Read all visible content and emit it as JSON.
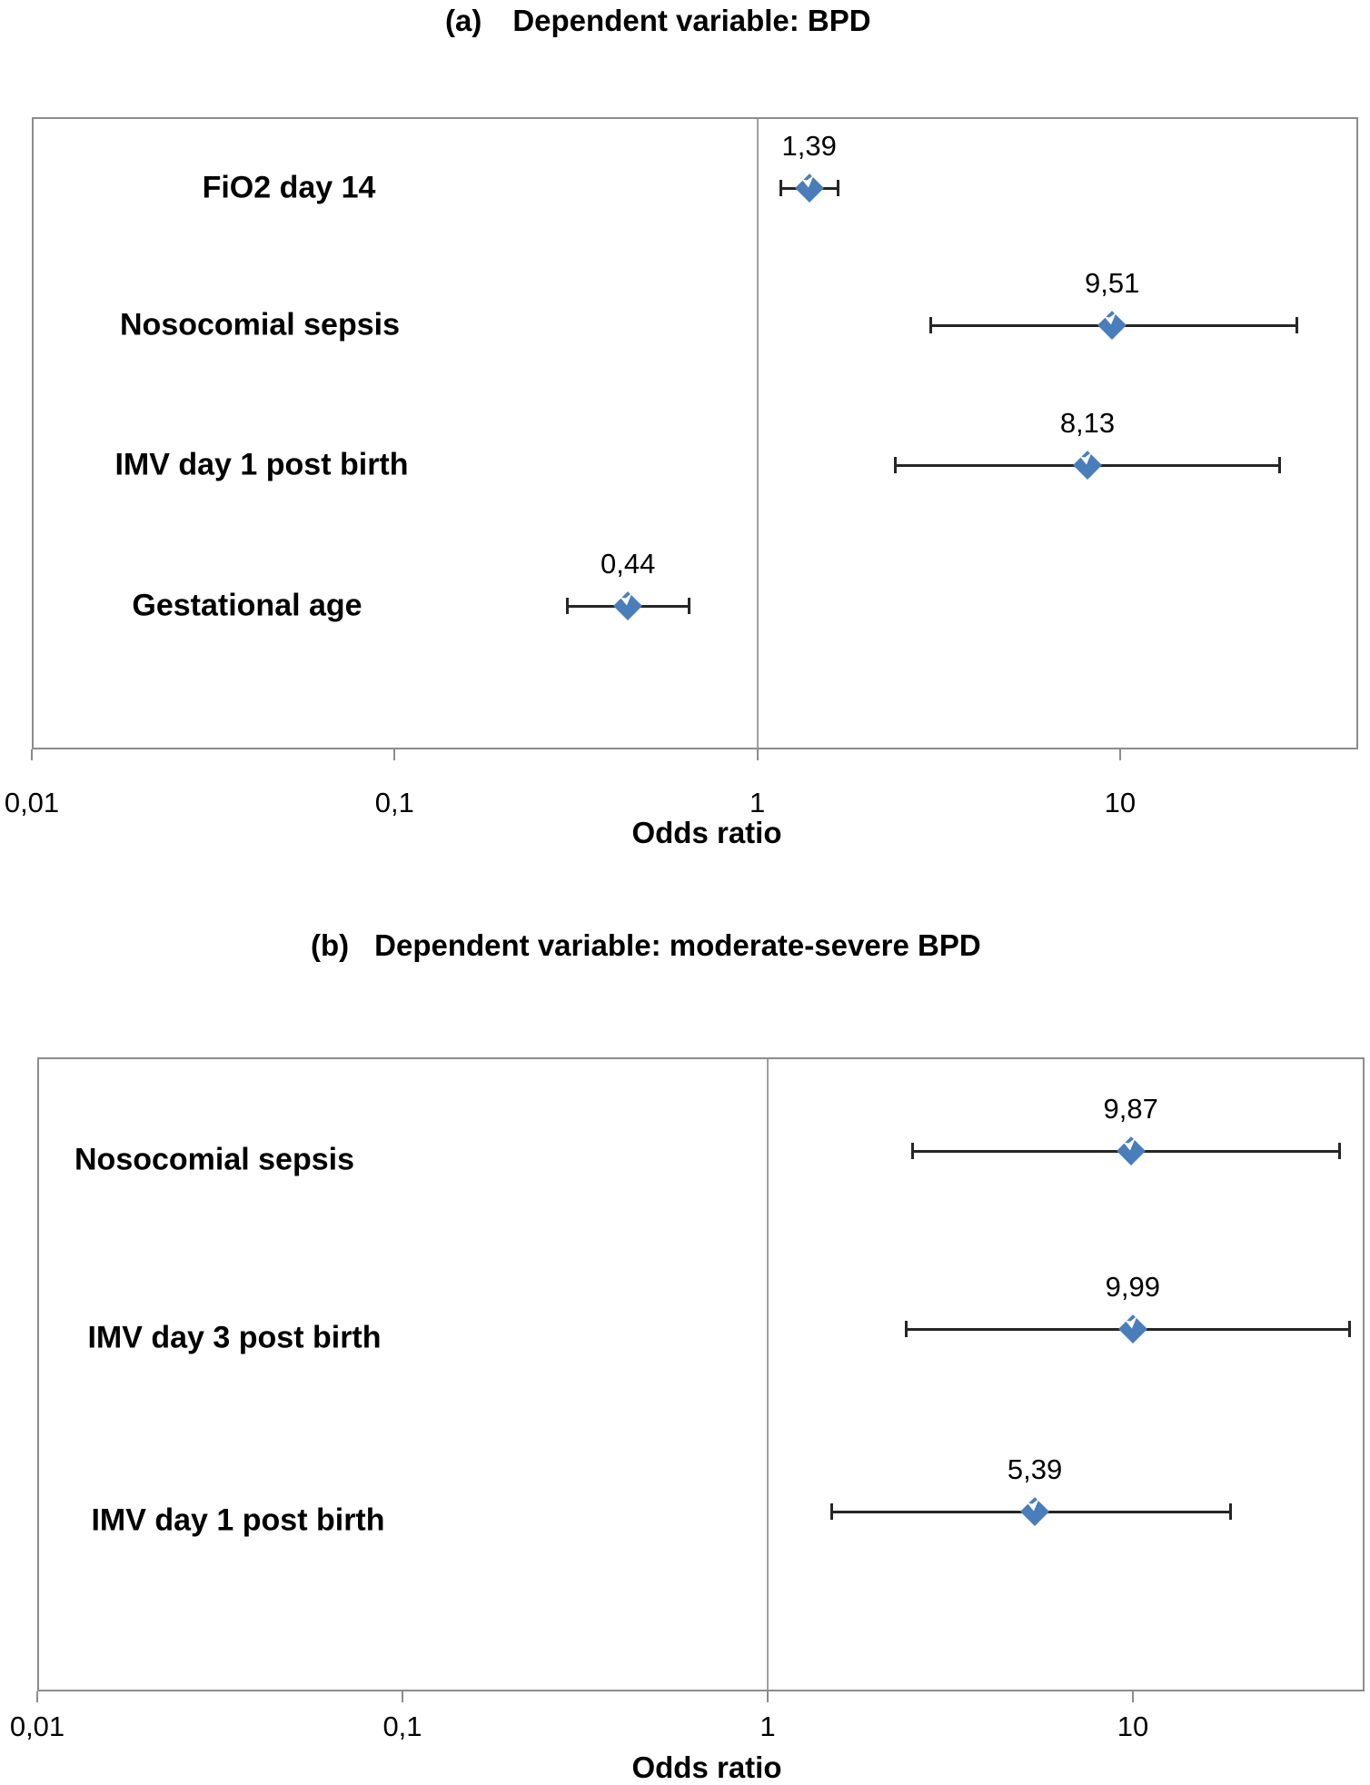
{
  "figure": {
    "marker_color": "#4a7ebb",
    "errorbar_color": "#262626",
    "frame_color": "#8c8c8c",
    "reference_line_color": "#a0a0a0",
    "text_color": "#000000"
  },
  "chart_data": [
    {
      "type": "forest",
      "panel_label": "(a)",
      "title": "Dependent variable: BPD",
      "xlabel": "Odds ratio",
      "x_scale": "log",
      "x_ticks": [
        "0,01",
        "0,1",
        "1",
        "10"
      ],
      "x_tick_values": [
        0.01,
        0.1,
        1,
        10
      ],
      "x_range": [
        0.01,
        45
      ],
      "reference_line": 1,
      "grid": false,
      "legend": "none",
      "rows": [
        {
          "label": "FiO2 day 14",
          "or": 1.39,
          "or_label": "1,39",
          "ci_low": 1.16,
          "ci_high": 1.67
        },
        {
          "label": "Nosocomial sepsis",
          "or": 9.51,
          "or_label": "9,51",
          "ci_low": 3.0,
          "ci_high": 30.8
        },
        {
          "label": "IMV day 1 post birth",
          "or": 8.13,
          "or_label": "8,13",
          "ci_low": 2.4,
          "ci_high": 27.6
        },
        {
          "label": "Gestational age",
          "or": 0.44,
          "or_label": "0,44",
          "ci_low": 0.3,
          "ci_high": 0.65
        }
      ]
    },
    {
      "type": "forest",
      "panel_label": "(b)",
      "title": "Dependent variable: moderate-severe BPD",
      "xlabel": "Odds ratio",
      "x_scale": "log",
      "x_ticks": [
        "0,01",
        "0,1",
        "1",
        "10"
      ],
      "x_tick_values": [
        0.01,
        0.1,
        1,
        10
      ],
      "x_range": [
        0.01,
        43
      ],
      "reference_line": 1,
      "grid": false,
      "legend": "none",
      "rows": [
        {
          "label": "Nosocomial sepsis",
          "or": 9.87,
          "or_label": "9,87",
          "ci_low": 2.5,
          "ci_high": 36.9
        },
        {
          "label": "IMV day 3 post birth",
          "or": 9.99,
          "or_label": "9,99",
          "ci_low": 2.4,
          "ci_high": 39.3
        },
        {
          "label": "IMV day 1 post birth",
          "or": 5.39,
          "or_label": "5,39",
          "ci_low": 1.5,
          "ci_high": 18.5
        }
      ]
    }
  ]
}
